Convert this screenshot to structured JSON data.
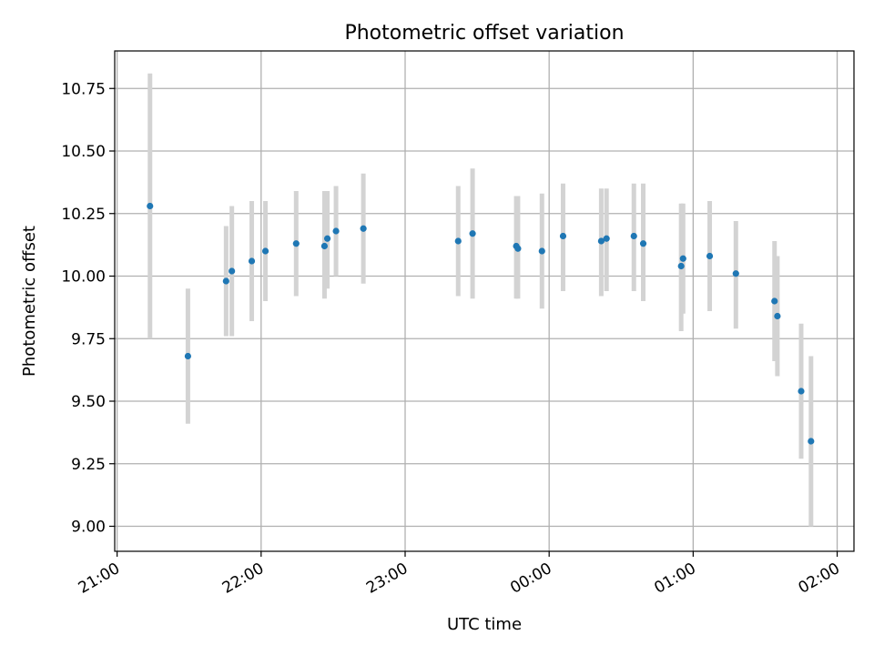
{
  "chart_data": {
    "type": "scatter",
    "title": "Photometric offset variation",
    "xlabel": "UTC time",
    "ylabel": "Photometric offset",
    "x_ticks": [
      "21:00",
      "22:00",
      "23:00",
      "00:00",
      "01:00",
      "02:00"
    ],
    "x_ticks_minutes": [
      0,
      60,
      120,
      180,
      240,
      300
    ],
    "xlim_minutes": [
      -1,
      307
    ],
    "y_ticks": [
      "9.00",
      "9.25",
      "9.50",
      "9.75",
      "10.00",
      "10.25",
      "10.50",
      "10.75"
    ],
    "y_tick_values": [
      9.0,
      9.25,
      9.5,
      9.75,
      10.0,
      10.25,
      10.5,
      10.75
    ],
    "ylim": [
      8.9,
      10.9
    ],
    "grid": true,
    "colors": {
      "point": "#1f77b4",
      "errorbar": "#d3d3d3",
      "grid": "#b0b0b0"
    },
    "points": [
      {
        "x": 13.7,
        "y": 10.28,
        "lo": 9.75,
        "hi": 10.81
      },
      {
        "x": 29.5,
        "y": 9.68,
        "lo": 9.41,
        "hi": 9.95
      },
      {
        "x": 45.4,
        "y": 9.98,
        "lo": 9.76,
        "hi": 10.2
      },
      {
        "x": 47.8,
        "y": 10.02,
        "lo": 9.76,
        "hi": 10.28
      },
      {
        "x": 56.1,
        "y": 10.06,
        "lo": 9.82,
        "hi": 10.3
      },
      {
        "x": 61.8,
        "y": 10.1,
        "lo": 9.9,
        "hi": 10.3
      },
      {
        "x": 74.6,
        "y": 10.13,
        "lo": 9.92,
        "hi": 10.34
      },
      {
        "x": 86.4,
        "y": 10.12,
        "lo": 9.91,
        "hi": 10.34
      },
      {
        "x": 87.6,
        "y": 10.15,
        "lo": 9.95,
        "hi": 10.34
      },
      {
        "x": 91.2,
        "y": 10.18,
        "lo": 10.0,
        "hi": 10.36
      },
      {
        "x": 102.6,
        "y": 10.19,
        "lo": 9.97,
        "hi": 10.41
      },
      {
        "x": 142.1,
        "y": 10.14,
        "lo": 9.92,
        "hi": 10.36
      },
      {
        "x": 148.1,
        "y": 10.17,
        "lo": 9.91,
        "hi": 10.43
      },
      {
        "x": 166.3,
        "y": 10.12,
        "lo": 9.91,
        "hi": 10.32
      },
      {
        "x": 167.0,
        "y": 10.11,
        "lo": 9.91,
        "hi": 10.32
      },
      {
        "x": 177.0,
        "y": 10.1,
        "lo": 9.87,
        "hi": 10.33
      },
      {
        "x": 185.8,
        "y": 10.16,
        "lo": 9.94,
        "hi": 10.37
      },
      {
        "x": 201.7,
        "y": 10.14,
        "lo": 9.92,
        "hi": 10.35
      },
      {
        "x": 203.9,
        "y": 10.15,
        "lo": 9.94,
        "hi": 10.35
      },
      {
        "x": 215.3,
        "y": 10.16,
        "lo": 9.94,
        "hi": 10.37
      },
      {
        "x": 219.2,
        "y": 10.13,
        "lo": 9.9,
        "hi": 10.37
      },
      {
        "x": 235.0,
        "y": 10.04,
        "lo": 9.78,
        "hi": 10.29
      },
      {
        "x": 235.8,
        "y": 10.07,
        "lo": 9.85,
        "hi": 10.29
      },
      {
        "x": 246.9,
        "y": 10.08,
        "lo": 9.86,
        "hi": 10.3
      },
      {
        "x": 257.8,
        "y": 10.01,
        "lo": 9.79,
        "hi": 10.22
      },
      {
        "x": 273.9,
        "y": 9.9,
        "lo": 9.66,
        "hi": 10.14
      },
      {
        "x": 275.1,
        "y": 9.84,
        "lo": 9.6,
        "hi": 10.08
      },
      {
        "x": 285.0,
        "y": 9.54,
        "lo": 9.27,
        "hi": 9.81
      },
      {
        "x": 289.1,
        "y": 9.34,
        "lo": 9.0,
        "hi": 9.68
      }
    ]
  }
}
